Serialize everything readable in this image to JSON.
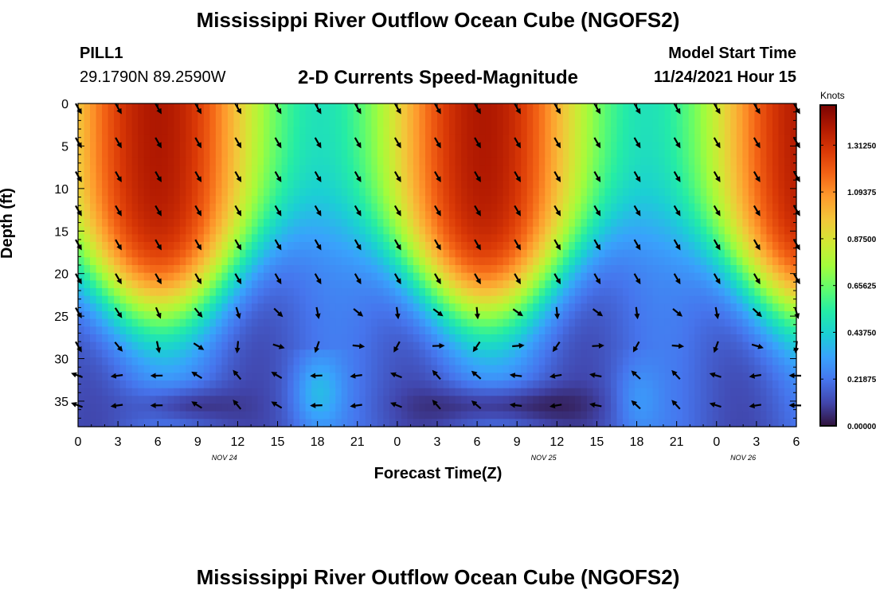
{
  "header": {
    "title": "Mississippi River Outflow Ocean Cube (NGOFS2)",
    "station": "PILL1",
    "coords": "29.1790N  89.2590W",
    "subtitle": "2-D Currents Speed-Magnitude",
    "model_start_label": "Model Start Time",
    "model_start_value": "11/24/2021 Hour 15"
  },
  "footer": {
    "title": "Mississippi River Outflow Ocean Cube (NGOFS2)"
  },
  "colorbar": {
    "units": "Knots",
    "ticks": [
      "1.31250",
      "1.09375",
      "0.87500",
      "0.65625",
      "0.43750",
      "0.21875",
      "0.00000"
    ],
    "tick_values": [
      1.3125,
      1.09375,
      0.875,
      0.65625,
      0.4375,
      0.21875,
      0.0
    ],
    "range": [
      0,
      1.5
    ],
    "palette": [
      "#30123b",
      "#4145ab",
      "#4675ed",
      "#39a2fc",
      "#1bcfd4",
      "#24eca6",
      "#61fc6c",
      "#a4fc3b",
      "#d1e834",
      "#f3c63a",
      "#fe9b2d",
      "#f36315",
      "#d93806",
      "#b11901",
      "#7a0403"
    ]
  },
  "chart_data": {
    "type": "heatmap",
    "title": "2-D Currents Speed-Magnitude",
    "xlabel": "Forecast Time(Z)",
    "ylabel": "Depth (ft)",
    "x_ticks": [
      "0",
      "3",
      "6",
      "9",
      "12",
      "15",
      "18",
      "21",
      "0",
      "3",
      "6",
      "9",
      "12",
      "15",
      "18",
      "21",
      "0",
      "3",
      "6"
    ],
    "x_range_hours": [
      0,
      54
    ],
    "date_labels": [
      {
        "text": "NOV 24",
        "hour": 11
      },
      {
        "text": "NOV 25",
        "hour": 35
      },
      {
        "text": "NOV 26",
        "hour": 50
      }
    ],
    "y_ticks": [
      "0",
      "5",
      "10",
      "15",
      "20",
      "25",
      "30",
      "35"
    ],
    "y_range_ft": [
      0,
      38
    ],
    "value_units": "Knots",
    "description_of_field": "surface speeds high (~1.3-1.5 kn) peaking near hours 6 and 30, low (~0.6 kn) near hours 18 and 42; near-bottom speeds low (~0.05-0.3 kn)",
    "arrow_hours": [
      0,
      3,
      6,
      9,
      12,
      15,
      18,
      21,
      24,
      27,
      30,
      33,
      36,
      39,
      42,
      45,
      48,
      51,
      54
    ],
    "arrow_depths_ft": [
      0.5,
      4.5,
      8.5,
      12.5,
      16.5,
      20.5,
      24.5,
      28.5,
      32,
      35.5
    ]
  }
}
